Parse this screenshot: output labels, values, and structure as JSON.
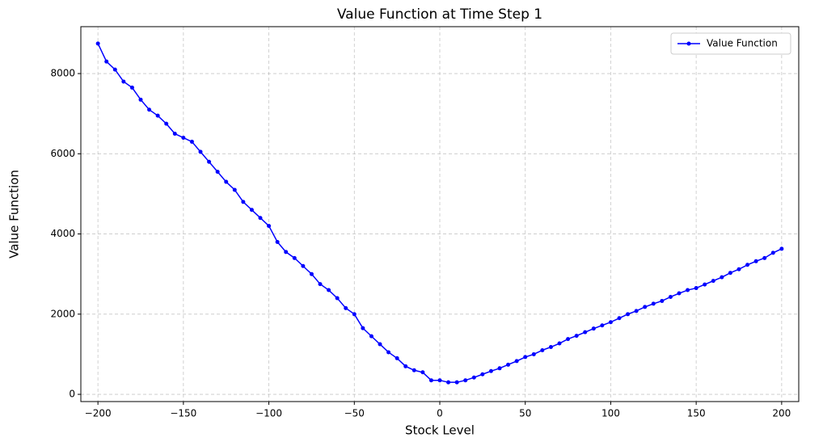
{
  "chart_data": {
    "type": "line",
    "title": "Value Function at Time Step 1",
    "x_label": "Stock Level",
    "y_label": "Value Function",
    "x": [
      -200,
      -195,
      -190,
      -185,
      -180,
      -175,
      -170,
      -165,
      -160,
      -155,
      -150,
      -145,
      -140,
      -135,
      -130,
      -125,
      -120,
      -115,
      -110,
      -105,
      -100,
      -95,
      -90,
      -85,
      -80,
      -75,
      -70,
      -65,
      -60,
      -55,
      -50,
      -45,
      -40,
      -35,
      -30,
      -25,
      -20,
      -15,
      -10,
      -5,
      0,
      5,
      10,
      15,
      20,
      25,
      30,
      35,
      40,
      45,
      50,
      55,
      60,
      65,
      70,
      75,
      80,
      85,
      90,
      95,
      100,
      105,
      110,
      115,
      120,
      125,
      130,
      135,
      140,
      145,
      150,
      155,
      160,
      165,
      170,
      175,
      180,
      185,
      190,
      195,
      200
    ],
    "series": [
      {
        "name": "Value Function",
        "color": "#0000ff",
        "values": [
          8750,
          8300,
          8100,
          7800,
          7650,
          7350,
          7100,
          6950,
          6750,
          6500,
          6400,
          6300,
          6050,
          5800,
          5550,
          5300,
          5100,
          4800,
          4600,
          4400,
          4200,
          3800,
          3550,
          3400,
          3200,
          3000,
          2750,
          2600,
          2400,
          2150,
          2000,
          1650,
          1450,
          1250,
          1050,
          900,
          700,
          600,
          550,
          350,
          350,
          300,
          300,
          350,
          420,
          500,
          580,
          650,
          740,
          830,
          930,
          1000,
          1100,
          1180,
          1270,
          1380,
          1460,
          1550,
          1640,
          1720,
          1800,
          1900,
          2000,
          2080,
          2180,
          2260,
          2330,
          2430,
          2520,
          2600,
          2650,
          2740,
          2830,
          2920,
          3030,
          3120,
          3230,
          3320,
          3400,
          3530,
          3630
        ]
      }
    ],
    "xlim": [
      -210,
      210
    ],
    "ylim": [
      -180,
      9170
    ],
    "xticks": [
      {
        "value": -200,
        "label": "−200"
      },
      {
        "value": -150,
        "label": "−150"
      },
      {
        "value": -100,
        "label": "−100"
      },
      {
        "value": -50,
        "label": "−50"
      },
      0,
      50,
      100,
      150,
      200
    ],
    "yticks": [
      0,
      2000,
      4000,
      6000,
      8000
    ],
    "grid": true,
    "legend": "upper right"
  }
}
